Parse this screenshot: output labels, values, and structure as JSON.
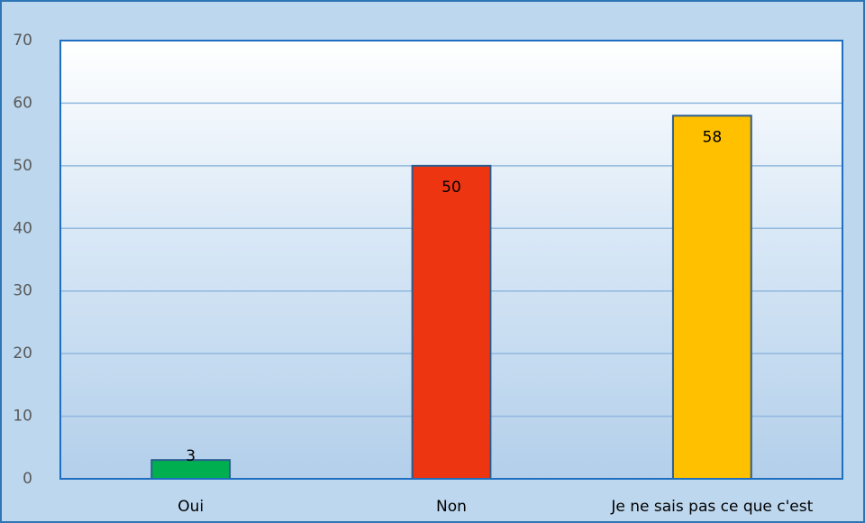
{
  "chart_data": {
    "type": "bar",
    "categories": [
      "Oui",
      "Non",
      "Je ne sais pas ce que c'est"
    ],
    "values": [
      3,
      50,
      58
    ],
    "colors": [
      "#00b050",
      "#ee3512",
      "#ffc000"
    ],
    "ylim": [
      0,
      70
    ],
    "yticks": [
      0,
      10,
      20,
      30,
      40,
      50,
      60,
      70
    ],
    "grid": true
  }
}
